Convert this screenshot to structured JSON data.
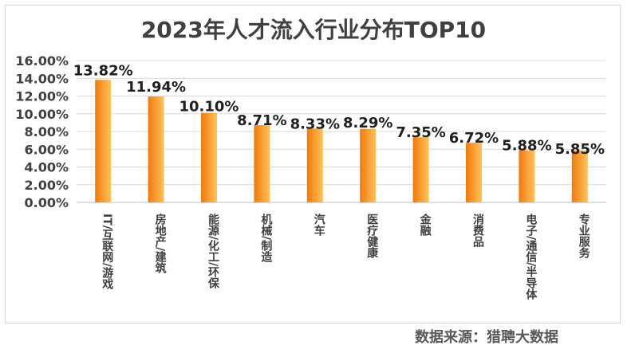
{
  "chart_data": {
    "type": "bar",
    "title": "2023年人才流入行业分布TOP10",
    "categories": [
      "IT/互联网/游戏",
      "房地产/建筑",
      "能源/化工/环保",
      "机械/制造",
      "汽车",
      "医疗健康",
      "金融",
      "消费品",
      "电子/通信/半导体",
      "专业服务"
    ],
    "values": [
      13.82,
      11.94,
      10.1,
      8.71,
      8.33,
      8.29,
      7.35,
      6.72,
      5.88,
      5.85
    ],
    "data_labels": [
      "13.82%",
      "11.94%",
      "10.10%",
      "8.71%",
      "8.33%",
      "8.29%",
      "7.35%",
      "6.72%",
      "5.88%",
      "5.85%"
    ],
    "ylim": [
      0,
      16
    ],
    "yticks": [
      "0.00%",
      "2.00%",
      "4.00%",
      "6.00%",
      "8.00%",
      "10.00%",
      "12.00%",
      "14.00%",
      "16.00%"
    ],
    "xlabel": "",
    "ylabel": "",
    "grid": true,
    "colors": {
      "bar_dark": "#f07a0f",
      "bar_light": "#ffc259",
      "grid": "#d9d9d9"
    }
  },
  "footer": {
    "source": "数据来源：猎聘大数据"
  }
}
